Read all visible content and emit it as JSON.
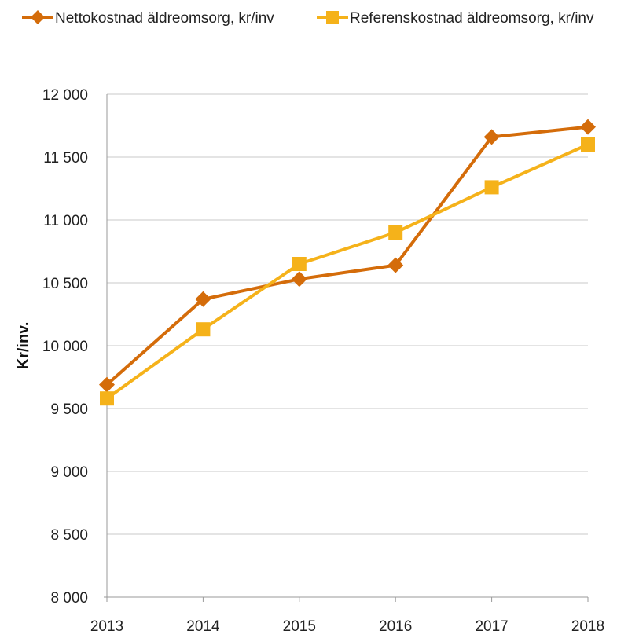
{
  "chart_data": {
    "type": "line",
    "title": "",
    "xlabel": "",
    "ylabel": "Kr/inv.",
    "categories": [
      "2013",
      "2014",
      "2015",
      "2016",
      "2017",
      "2018"
    ],
    "ylim": [
      8000,
      12000
    ],
    "yticks": [
      8000,
      8500,
      9000,
      9500,
      10000,
      10500,
      11000,
      11500,
      12000
    ],
    "ytick_labels": [
      "8 000",
      "8 500",
      "9 000",
      "9 500",
      "10 000",
      "10 500",
      "11 000",
      "11 500",
      "12 000"
    ],
    "grid": true,
    "legend_position": "top",
    "series": [
      {
        "name": "Nettokostnad äldreomsorg, kr/inv",
        "values": [
          9690,
          10370,
          10530,
          10640,
          11660,
          11740
        ],
        "color": "#d46c0a",
        "marker": "diamond"
      },
      {
        "name": "Referenskostnad äldreomsorg, kr/inv",
        "values": [
          9580,
          10130,
          10650,
          10900,
          11260,
          11600
        ],
        "color": "#f5b21a",
        "marker": "square"
      }
    ]
  }
}
